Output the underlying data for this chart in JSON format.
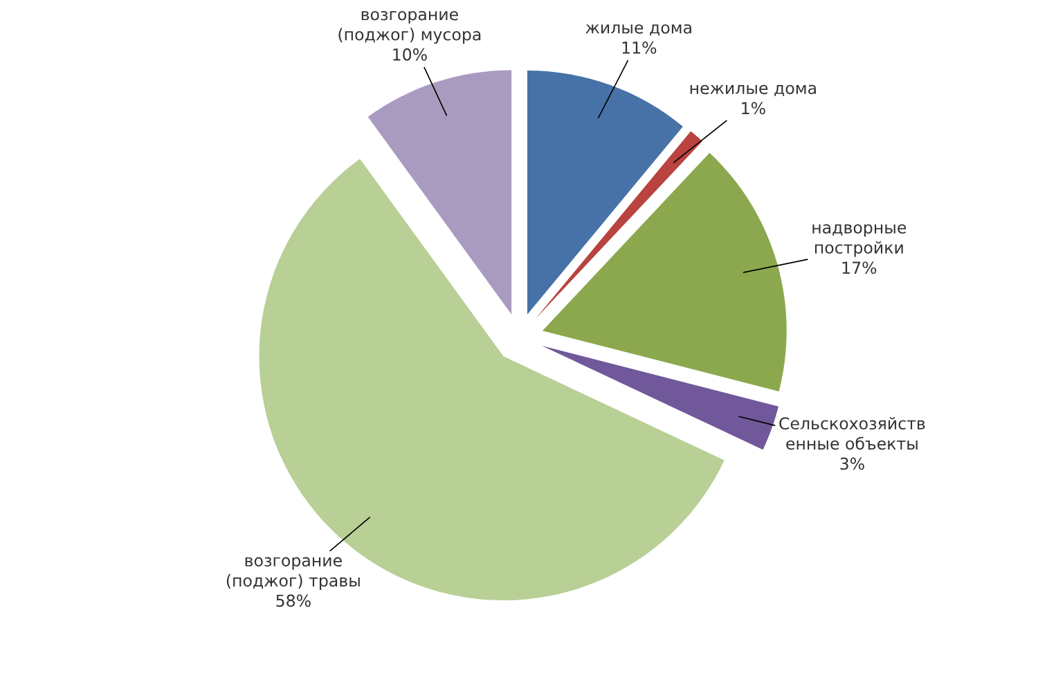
{
  "chart_data": {
    "type": "pie",
    "categories": [
      "жилые дома",
      "нежилые дома",
      "надворные\nпостройки",
      "Сельскохозяйств\nенные объекты",
      "возгорание\n(поджог) травы",
      "возгорание\n(поджог) мусора"
    ],
    "values": [
      11,
      1,
      17,
      3,
      58,
      10
    ],
    "colors": [
      "#4672a7",
      "#b8433f",
      "#8ba84e",
      "#70589a",
      "#b8cf95",
      "#a99bc0"
    ],
    "value_labels": [
      "11%",
      "1%",
      "17%",
      "3%",
      "58%",
      "10%"
    ]
  }
}
